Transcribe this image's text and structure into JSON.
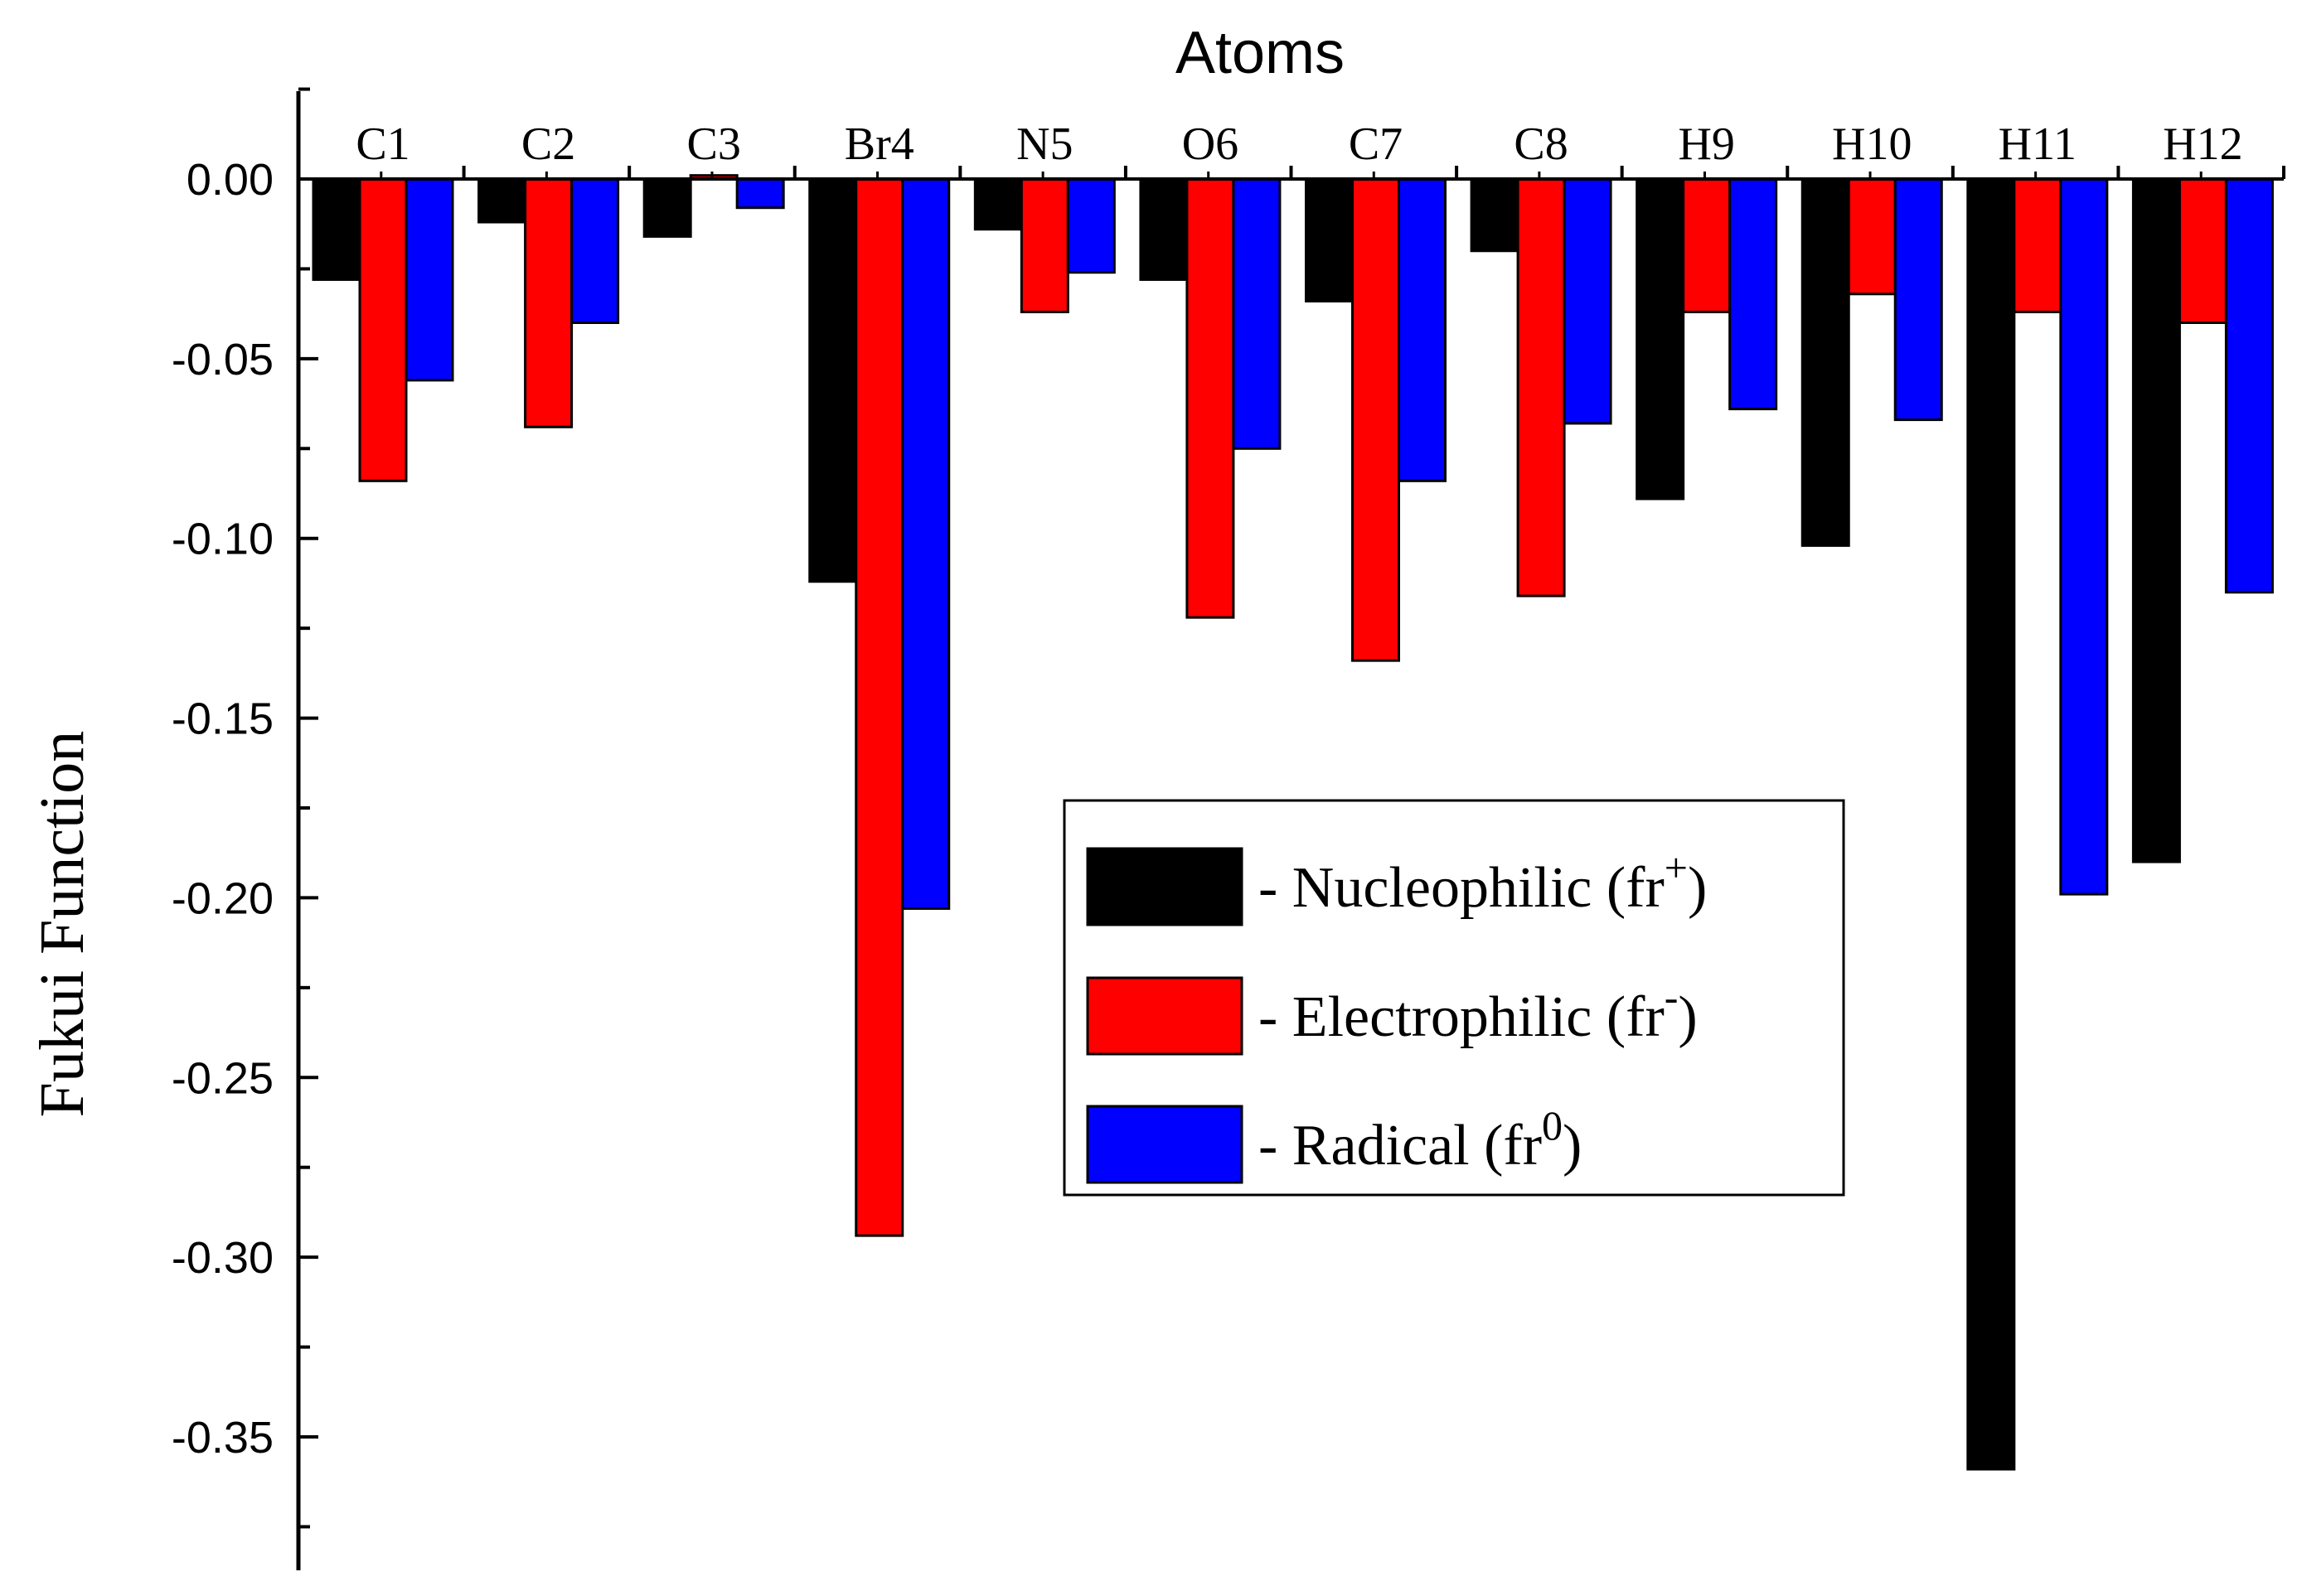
{
  "chart_data": {
    "type": "bar",
    "title": "Atoms",
    "xlabel": "Atoms",
    "ylabel": "Fukui Function",
    "ylim": [
      -0.385,
      0.025
    ],
    "yticks": [
      0.0,
      -0.05,
      -0.1,
      -0.15,
      -0.2,
      -0.25,
      -0.3,
      -0.35
    ],
    "ytick_labels": [
      "0.00",
      "-0.05",
      "-0.10",
      "-0.15",
      "-0.20",
      "-0.25",
      "-0.30",
      "-0.35"
    ],
    "categories": [
      "C1",
      "C2",
      "C3",
      "Br4",
      "N5",
      "O6",
      "C7",
      "C8",
      "H9",
      "H10",
      "H11",
      "H12"
    ],
    "series": [
      {
        "name": "Nucleophilic",
        "color": "#000000",
        "values": [
          -0.028,
          -0.012,
          -0.016,
          -0.112,
          -0.014,
          -0.028,
          -0.034,
          -0.02,
          -0.089,
          -0.102,
          -0.359,
          -0.19
        ]
      },
      {
        "name": "Electrophilic",
        "color": "#ff0000",
        "values": [
          -0.084,
          -0.069,
          0.001,
          -0.294,
          -0.037,
          -0.122,
          -0.134,
          -0.116,
          -0.037,
          -0.032,
          -0.037,
          -0.04
        ]
      },
      {
        "name": "Radical",
        "color": "#0000ff",
        "values": [
          -0.056,
          -0.04,
          -0.008,
          -0.203,
          -0.026,
          -0.075,
          -0.084,
          -0.068,
          -0.064,
          -0.067,
          -0.199,
          -0.115
        ]
      }
    ],
    "legend": {
      "position": "center-right",
      "entries": [
        {
          "prefix": "- Nucleophilic (fr",
          "sup": "+",
          "suffix": ")"
        },
        {
          "prefix": "- Electrophilic (fr",
          "sup": "-",
          "suffix": ")"
        },
        {
          "prefix": "- Radical (fr",
          "sup": "0",
          "suffix": ")"
        }
      ]
    }
  }
}
